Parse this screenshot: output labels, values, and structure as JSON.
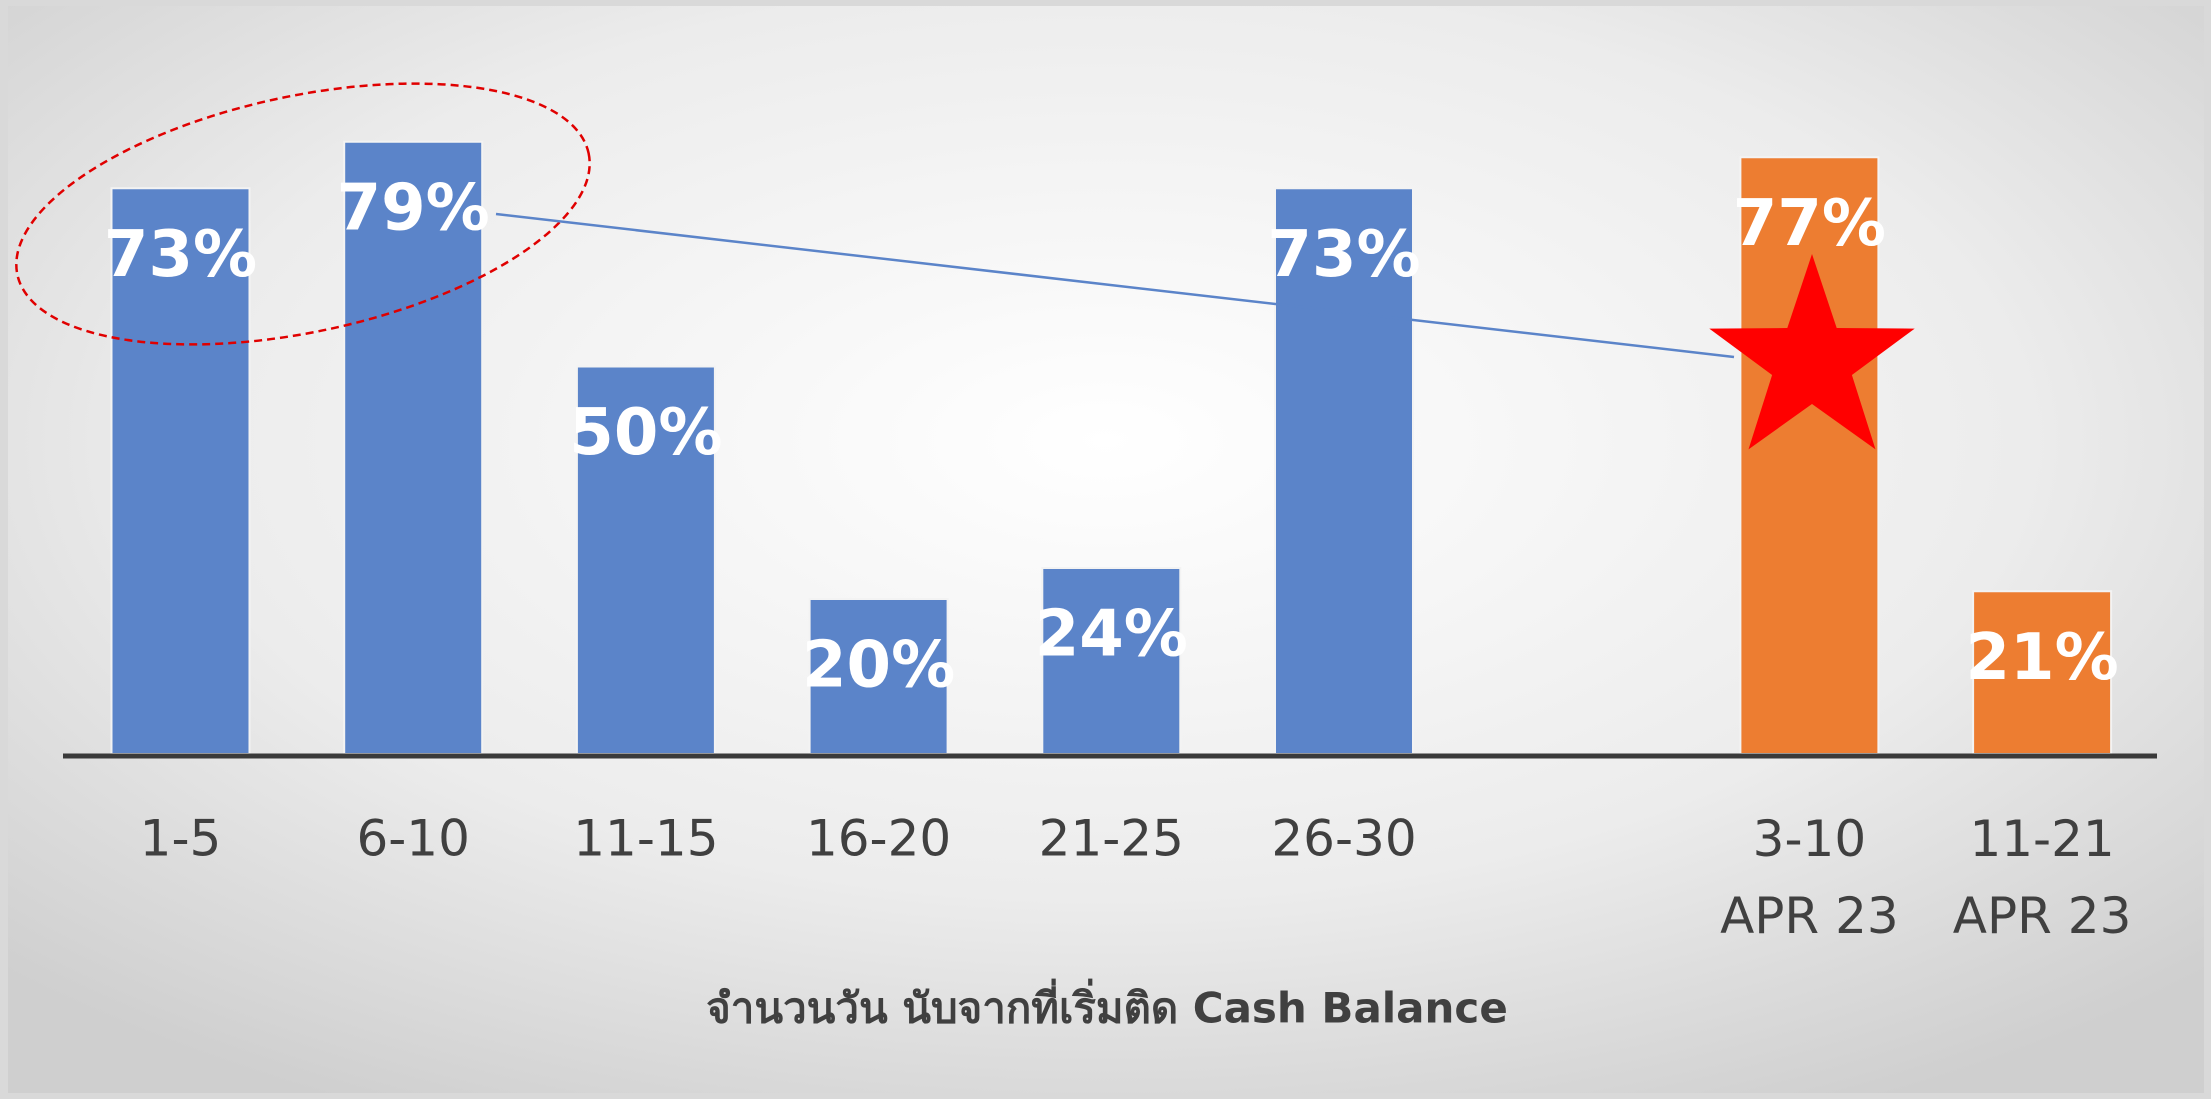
{
  "chart_data": {
    "type": "bar",
    "categories": [
      "1-5",
      "6-10",
      "11-15",
      "16-20",
      "21-25",
      "26-30",
      null,
      "3-10\nAPR 23",
      "11-21\nAPR 23"
    ],
    "values": [
      73,
      79,
      50,
      20,
      24,
      73,
      null,
      77,
      21
    ],
    "value_labels": [
      "73%",
      "79%",
      "50%",
      "20%",
      "24%",
      "73%",
      null,
      "77%",
      "21%"
    ],
    "colors": [
      "#5b84c9",
      "#5b84c9",
      "#5b84c9",
      "#5b84c9",
      "#5b84c9",
      "#5b84c9",
      null,
      "#ed7d31",
      "#ed7d31"
    ],
    "ylim": [
      0,
      96
    ],
    "x_label": "จำนวนวัน นับจากที่เริ่มติด Cash Balance"
  }
}
